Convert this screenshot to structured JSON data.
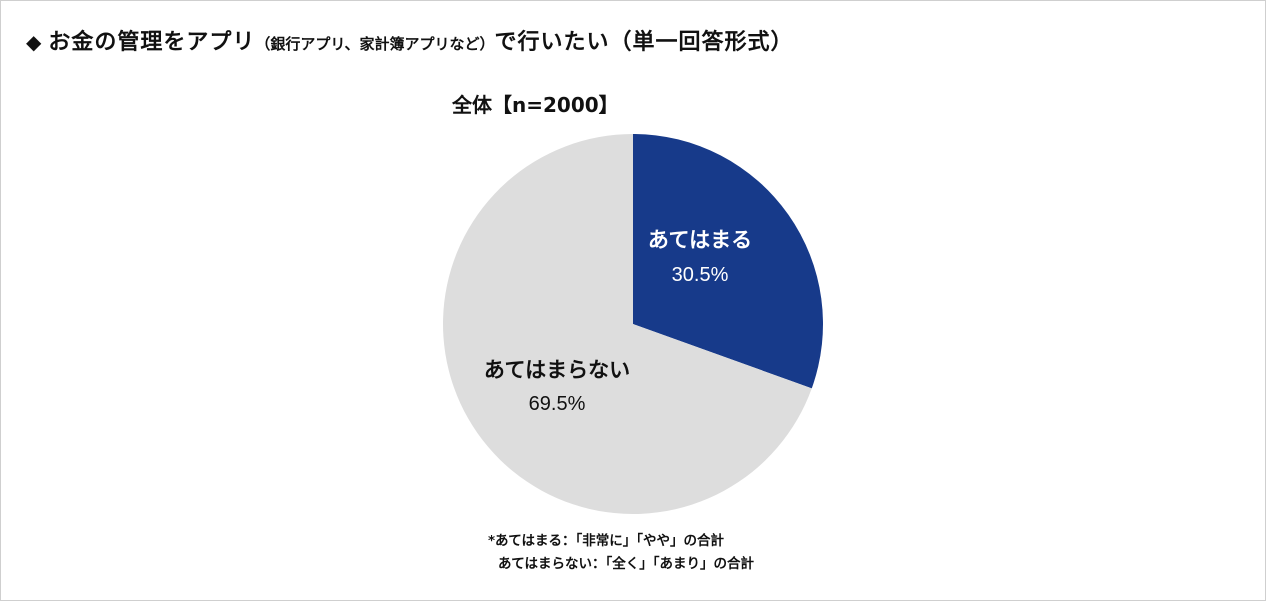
{
  "title": {
    "marker": "◆",
    "part1": "お金の管理をアプリ",
    "part2": "（銀行アプリ、家計簿アプリなど）",
    "part3": "で行いたい（単一回答形式）"
  },
  "subtitle": "全体【n=2000】",
  "chart_data": {
    "type": "pie",
    "slices": [
      {
        "label": "あてはまる",
        "value": 30.5,
        "value_label": "30.5%",
        "color": "#173a8a",
        "text_color": "#ffffff"
      },
      {
        "label": "あてはまらない",
        "value": 69.5,
        "value_label": "69.5%",
        "color": "#dddddd",
        "text_color": "#111111"
      }
    ],
    "start": "12 o'clock",
    "direction": "clockwise"
  },
  "notes": [
    "*あてはまる：「非常に」「やや」の合計",
    "あてはまらない：「全く」「あまり」の合計"
  ]
}
